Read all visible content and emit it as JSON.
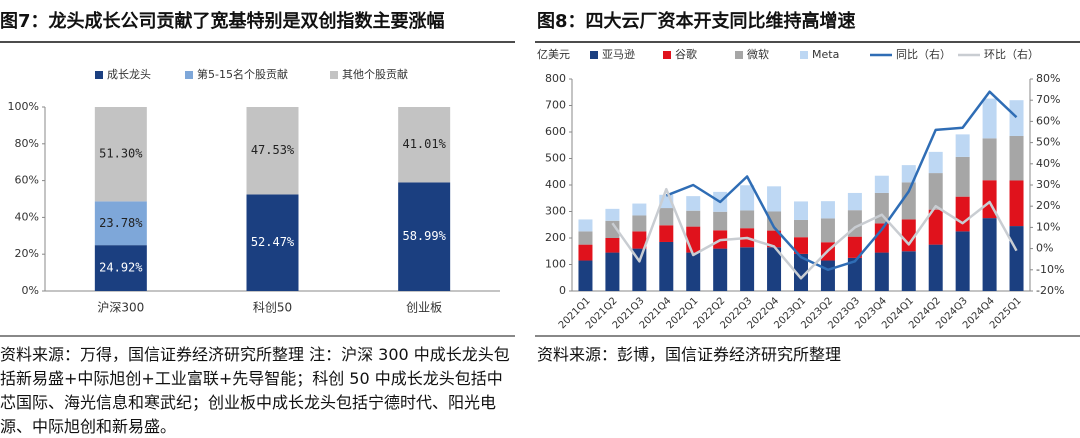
{
  "chart_data": [
    {
      "type": "bar",
      "stacked": true,
      "title": "图7：龙头成长公司贡献了宽基特别是双创指数主要涨幅",
      "categories": [
        "沪深300",
        "科创50",
        "创业板"
      ],
      "series": [
        {
          "name": "成长龙头",
          "color": "#1b3f80",
          "values": [
            24.92,
            52.47,
            58.99
          ],
          "value_labels": [
            "24.92%",
            "52.47%",
            "58.99%"
          ]
        },
        {
          "name": "第5-15名个股贡献",
          "color": "#7ea7d9",
          "values": [
            23.78,
            null,
            null
          ],
          "value_labels": [
            "23.78%",
            null,
            null
          ]
        },
        {
          "name": "其他个股贡献",
          "color": "#c3c3c3",
          "values": [
            51.3,
            47.53,
            41.01
          ],
          "value_labels": [
            "51.30%",
            "47.53%",
            "41.01%"
          ]
        }
      ],
      "ylim": [
        0,
        100
      ],
      "yticks": [
        {
          "value": 0,
          "label": "0%"
        },
        {
          "value": 20,
          "label": "20%"
        },
        {
          "value": 40,
          "label": "40%"
        },
        {
          "value": 60,
          "label": "60%"
        },
        {
          "value": 80,
          "label": "80%"
        },
        {
          "value": 100,
          "label": "100%"
        }
      ],
      "legend": "top",
      "source": "资料来源：万得，国信证券经济研究所整理 注：沪深 300 中成长龙头包括新易盛+中际旭创+工业富联+先导智能；科创 50 中成长龙头包括中芯国际、海光信息和寒武纪；创业板中成长龙头包括宁德时代、阳光电源、中际旭创和新易盛。"
    },
    {
      "type": "combo",
      "stacked": true,
      "title": "图8：四大云厂资本开支同比维持高增速",
      "y_label": "亿美元",
      "categories": [
        "2021Q1",
        "2021Q2",
        "2021Q3",
        "2021Q4",
        "2022Q1",
        "2022Q2",
        "2022Q3",
        "2022Q4",
        "2023Q1",
        "2023Q2",
        "2023Q3",
        "2023Q4",
        "2024Q1",
        "2024Q2",
        "2024Q3",
        "2024Q4",
        "2025Q1"
      ],
      "series": [
        {
          "name": "亚马逊",
          "color": "#1b3f80",
          "values": [
            115,
            145,
            160,
            185,
            145,
            160,
            165,
            165,
            140,
            115,
            125,
            145,
            150,
            175,
            225,
            275,
            245
          ]
        },
        {
          "name": "谷歌",
          "color": "#e0121c",
          "values": [
            60,
            55,
            65,
            63,
            98,
            69,
            72,
            63,
            63,
            69,
            80,
            110,
            120,
            132,
            131,
            143,
            172
          ]
        },
        {
          "name": "微软",
          "color": "#a6a6a6",
          "values": [
            50,
            65,
            60,
            65,
            60,
            70,
            67,
            72,
            65,
            90,
            100,
            115,
            140,
            138,
            150,
            158,
            168
          ]
        },
        {
          "name": "Meta",
          "color": "#bdd7f3",
          "values": [
            45,
            45,
            45,
            50,
            55,
            75,
            95,
            95,
            70,
            65,
            65,
            65,
            65,
            80,
            85,
            150,
            135
          ]
        },
        {
          "name": "同比（右）",
          "color": "#2f6db5",
          "axis": "y2",
          "values": [
            null,
            null,
            null,
            25,
            30,
            22,
            34,
            10,
            -4,
            -10,
            -6,
            9,
            27,
            56,
            57,
            74,
            62
          ]
        },
        {
          "name": "环比（右）",
          "color": "#c9cdd2",
          "axis": "y2",
          "values": [
            null,
            12,
            -6,
            28,
            -3,
            4,
            5,
            1,
            -14,
            -1,
            10,
            16,
            2,
            20,
            12,
            22,
            -1
          ]
        }
      ],
      "ylim": [
        0,
        800
      ],
      "yticks": [
        0,
        100,
        200,
        300,
        400,
        500,
        600,
        700,
        800
      ],
      "y2lim": [
        -20,
        80
      ],
      "y2ticks": [
        {
          "value": -20,
          "label": "-20%"
        },
        {
          "value": -10,
          "label": "-10%"
        },
        {
          "value": 0,
          "label": "0%"
        },
        {
          "value": 10,
          "label": "10%"
        },
        {
          "value": 20,
          "label": "20%"
        },
        {
          "value": 30,
          "label": "30%"
        },
        {
          "value": 40,
          "label": "40%"
        },
        {
          "value": 50,
          "label": "50%"
        },
        {
          "value": 60,
          "label": "60%"
        },
        {
          "value": 70,
          "label": "70%"
        },
        {
          "value": 80,
          "label": "80%"
        }
      ],
      "legend": "top",
      "source": "资料来源：彭博，国信证券经济研究所整理"
    }
  ]
}
